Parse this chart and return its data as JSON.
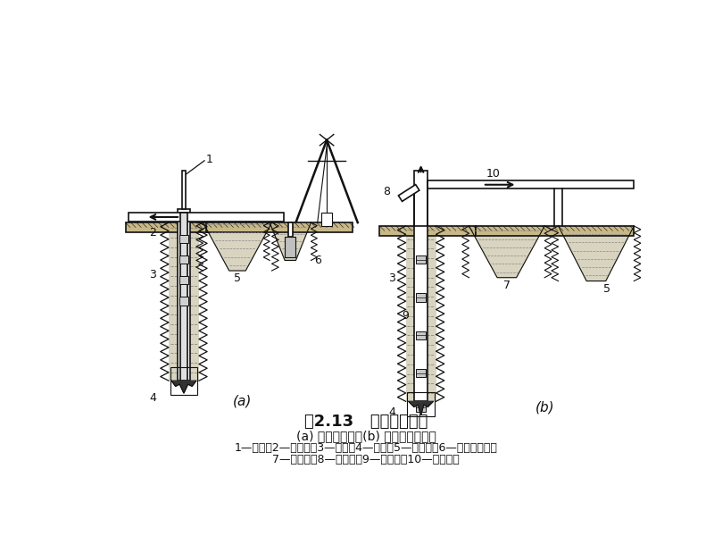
{
  "title": "图2.13   循环排渣方法",
  "subtitle": "(a) 正循环排渣；(b) 泵举反循环排渣",
  "legend_line1": "1—钻杆；2—送水管；3—主机；4—钻头；5—沉淀池；6—潜水泥浆泵；",
  "legend_line2": "7—泥浆池；8—砂石泵；9—抽渣管；10—排渣胶管",
  "label_a": "(a)",
  "label_b": "(b)",
  "lc": "#111111",
  "fill_mud": "#d8d4c0",
  "fill_ground": "#c8b888"
}
